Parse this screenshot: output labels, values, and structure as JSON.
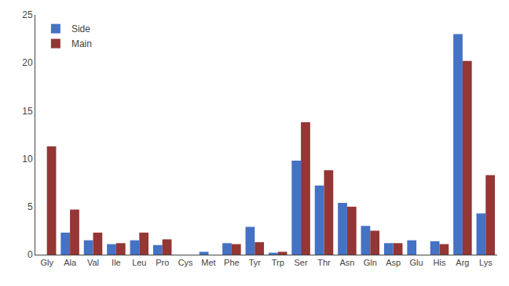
{
  "chart_data": {
    "type": "bar",
    "categories": [
      "Gly",
      "Ala",
      "Val",
      "Ile",
      "Leu",
      "Pro",
      "Cys",
      "Met",
      "Phe",
      "Tyr",
      "Trp",
      "Ser",
      "Thr",
      "Asn",
      "Gln",
      "Asp",
      "Glu",
      "His",
      "Arg",
      "Lys"
    ],
    "series": [
      {
        "name": "Side",
        "color": "#4472C4",
        "values": [
          0.0,
          2.3,
          1.5,
          1.1,
          1.5,
          1.0,
          0.0,
          0.3,
          1.2,
          2.9,
          0.2,
          9.8,
          7.2,
          5.4,
          3.0,
          1.2,
          1.5,
          1.4,
          23.0,
          4.3
        ]
      },
      {
        "name": "Main",
        "color": "#943634",
        "values": [
          11.3,
          4.7,
          2.3,
          1.2,
          2.3,
          1.6,
          0.0,
          0.0,
          1.1,
          1.3,
          0.3,
          13.8,
          8.8,
          5.0,
          2.5,
          1.2,
          0.0,
          1.1,
          20.2,
          8.3
        ]
      }
    ],
    "ylim": [
      0,
      25
    ],
    "yticks": [
      0,
      5,
      10,
      15,
      20,
      25
    ],
    "grid": false,
    "legend": "upper left"
  }
}
